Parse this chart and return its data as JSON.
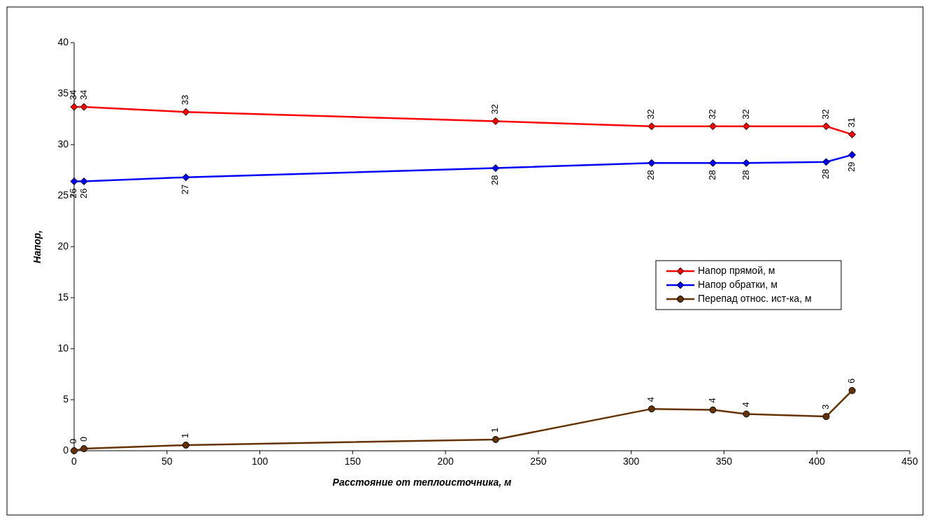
{
  "chart_data": {
    "type": "line",
    "xlabel": "Расстояние от теплоисточника, м",
    "ylabel": "Напор,",
    "x": [
      0,
      5.3,
      60.2,
      227,
      311,
      344,
      362,
      405,
      419
    ],
    "xlim": [
      0,
      450
    ],
    "xticks": [
      0,
      50,
      100,
      150,
      200,
      250,
      300,
      350,
      400,
      450
    ],
    "ylim": [
      0,
      40
    ],
    "yticks": [
      0,
      5,
      10,
      15,
      20,
      25,
      30,
      35,
      40
    ],
    "grid": false,
    "legend": "right",
    "line_style": "solid",
    "series": [
      {
        "name": "Напор прямой, м",
        "color": "#ff0000",
        "marker": "diamond",
        "values": [
          33.7,
          33.7,
          33.2,
          32.3,
          31.8,
          31.8,
          31.8,
          31.8,
          31.0
        ],
        "value_labels": [
          "34",
          "34",
          "33",
          "32",
          "32",
          "32",
          "32",
          "32",
          "31"
        ]
      },
      {
        "name": "Напор обратки, м",
        "color": "#0000ff",
        "marker": "diamond",
        "values": [
          26.4,
          26.4,
          26.8,
          27.7,
          28.2,
          28.2,
          28.2,
          28.3,
          29.0
        ],
        "value_labels": [
          "26",
          "26",
          "27",
          "28",
          "28",
          "28",
          "28",
          "28",
          "29"
        ]
      },
      {
        "name": "Перепад относ. ист-ка, м",
        "color": "#663300",
        "marker": "circle",
        "values": [
          0,
          0.2,
          0.55,
          1.1,
          4.1,
          4.0,
          3.6,
          3.35,
          5.9
        ],
        "value_labels": [
          "0",
          "0",
          "1",
          "1",
          "4",
          "4",
          "4",
          "3",
          "6"
        ]
      }
    ]
  }
}
